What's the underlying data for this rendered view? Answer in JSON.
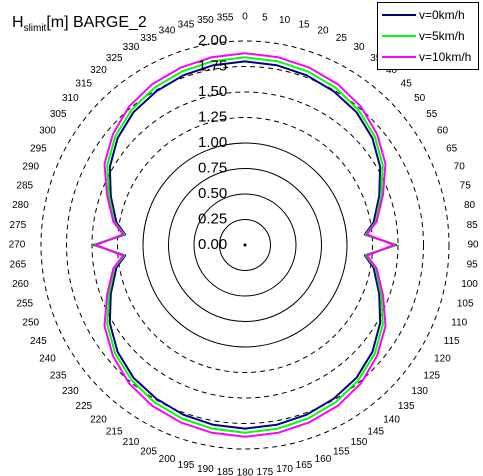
{
  "chart_data": {
    "type": "polar-line",
    "title": {
      "main": "H",
      "sub": "slimit",
      "rest": "[m] BARGE_2"
    },
    "radial_ticks": [
      "0.00",
      "0.25",
      "0.50",
      "0.75",
      "1.00",
      "1.25",
      "1.50",
      "1.75",
      "2.00"
    ],
    "radial_max": 2.0,
    "solid_circles": [
      0.25,
      0.5,
      0.75,
      1.0
    ],
    "dashed_circles": [
      1.25,
      1.5,
      1.75,
      2.0
    ],
    "angle_tick_step": 5,
    "angle_zero": "top",
    "direction": "clockwise",
    "series": [
      {
        "name": "v=0km/h",
        "color": "#000080",
        "points": [
          [
            0,
            1.8
          ],
          [
            10,
            1.79
          ],
          [
            20,
            1.77
          ],
          [
            30,
            1.74
          ],
          [
            40,
            1.7
          ],
          [
            50,
            1.63
          ],
          [
            60,
            1.53
          ],
          [
            70,
            1.4
          ],
          [
            80,
            1.28
          ],
          [
            85,
            1.18
          ],
          [
            90,
            1.48
          ],
          [
            95,
            1.18
          ],
          [
            100,
            1.28
          ],
          [
            110,
            1.4
          ],
          [
            120,
            1.53
          ],
          [
            130,
            1.63
          ],
          [
            140,
            1.7
          ],
          [
            150,
            1.74
          ],
          [
            160,
            1.77
          ],
          [
            170,
            1.79
          ],
          [
            180,
            1.8
          ],
          [
            190,
            1.79
          ],
          [
            200,
            1.77
          ],
          [
            210,
            1.74
          ],
          [
            220,
            1.7
          ],
          [
            230,
            1.63
          ],
          [
            240,
            1.53
          ],
          [
            250,
            1.4
          ],
          [
            260,
            1.28
          ],
          [
            265,
            1.18
          ],
          [
            270,
            1.48
          ],
          [
            275,
            1.18
          ],
          [
            280,
            1.28
          ],
          [
            290,
            1.4
          ],
          [
            300,
            1.53
          ],
          [
            310,
            1.63
          ],
          [
            320,
            1.7
          ],
          [
            330,
            1.74
          ],
          [
            340,
            1.77
          ],
          [
            350,
            1.79
          ]
        ]
      },
      {
        "name": "v=5km/h",
        "color": "#00ff00",
        "points": [
          [
            0,
            1.84
          ],
          [
            10,
            1.83
          ],
          [
            20,
            1.81
          ],
          [
            30,
            1.78
          ],
          [
            40,
            1.73
          ],
          [
            50,
            1.66
          ],
          [
            60,
            1.56
          ],
          [
            70,
            1.42
          ],
          [
            80,
            1.3
          ],
          [
            85,
            1.19
          ],
          [
            90,
            1.47
          ],
          [
            95,
            1.19
          ],
          [
            100,
            1.3
          ],
          [
            110,
            1.42
          ],
          [
            120,
            1.56
          ],
          [
            130,
            1.66
          ],
          [
            140,
            1.73
          ],
          [
            150,
            1.78
          ],
          [
            160,
            1.81
          ],
          [
            170,
            1.83
          ],
          [
            180,
            1.84
          ],
          [
            190,
            1.83
          ],
          [
            200,
            1.81
          ],
          [
            210,
            1.78
          ],
          [
            220,
            1.73
          ],
          [
            230,
            1.66
          ],
          [
            240,
            1.56
          ],
          [
            250,
            1.42
          ],
          [
            260,
            1.3
          ],
          [
            265,
            1.19
          ],
          [
            270,
            1.47
          ],
          [
            275,
            1.19
          ],
          [
            280,
            1.3
          ],
          [
            290,
            1.42
          ],
          [
            300,
            1.56
          ],
          [
            310,
            1.66
          ],
          [
            320,
            1.73
          ],
          [
            330,
            1.78
          ],
          [
            340,
            1.81
          ],
          [
            350,
            1.83
          ]
        ]
      },
      {
        "name": "v=10km/h",
        "color": "#ff00ff",
        "points": [
          [
            0,
            1.88
          ],
          [
            10,
            1.87
          ],
          [
            20,
            1.85
          ],
          [
            30,
            1.82
          ],
          [
            40,
            1.77
          ],
          [
            50,
            1.69
          ],
          [
            60,
            1.59
          ],
          [
            70,
            1.44
          ],
          [
            80,
            1.31
          ],
          [
            85,
            1.2
          ],
          [
            90,
            1.46
          ],
          [
            95,
            1.2
          ],
          [
            100,
            1.31
          ],
          [
            110,
            1.44
          ],
          [
            120,
            1.59
          ],
          [
            130,
            1.69
          ],
          [
            140,
            1.77
          ],
          [
            150,
            1.82
          ],
          [
            160,
            1.85
          ],
          [
            170,
            1.87
          ],
          [
            180,
            1.88
          ],
          [
            190,
            1.87
          ],
          [
            200,
            1.85
          ],
          [
            210,
            1.82
          ],
          [
            220,
            1.77
          ],
          [
            230,
            1.69
          ],
          [
            240,
            1.59
          ],
          [
            250,
            1.44
          ],
          [
            260,
            1.31
          ],
          [
            265,
            1.2
          ],
          [
            270,
            1.46
          ],
          [
            275,
            1.2
          ],
          [
            280,
            1.31
          ],
          [
            290,
            1.44
          ],
          [
            300,
            1.59
          ],
          [
            310,
            1.69
          ],
          [
            320,
            1.77
          ],
          [
            330,
            1.82
          ],
          [
            340,
            1.85
          ],
          [
            350,
            1.87
          ]
        ]
      }
    ]
  }
}
